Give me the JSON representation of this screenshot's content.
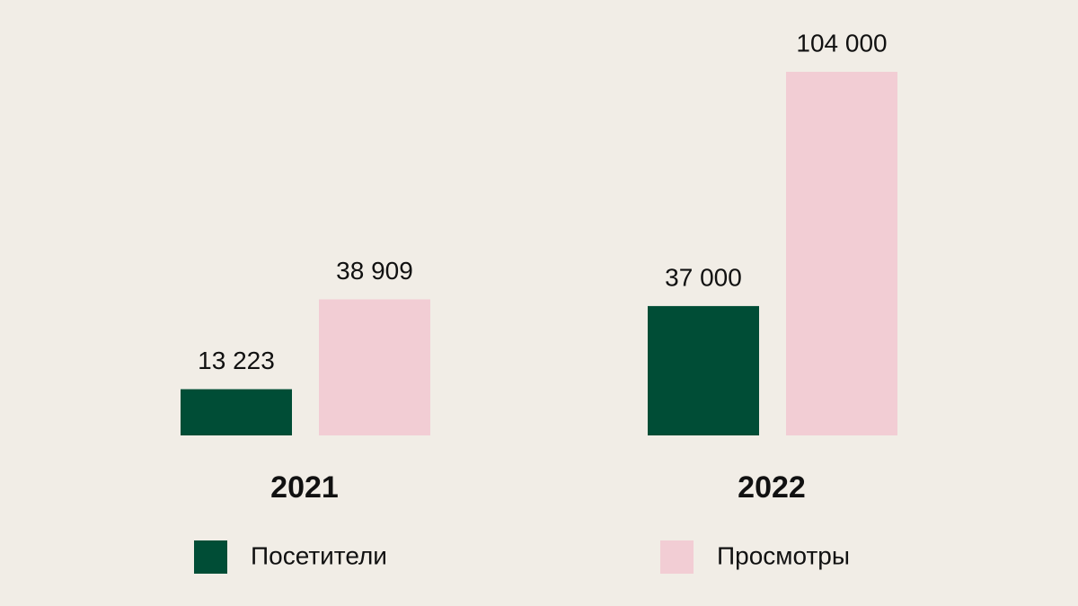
{
  "chart_data": {
    "type": "bar",
    "categories": [
      "2021",
      "2022"
    ],
    "series": [
      {
        "name": "Посетители",
        "color": "#004d36",
        "values": [
          13223,
          37000
        ],
        "value_labels": [
          "13 223",
          "37 000"
        ]
      },
      {
        "name": "Просмотры",
        "color": "#f2cdd4",
        "values": [
          38909,
          104000
        ],
        "value_labels": [
          "38 909",
          "104 000"
        ]
      }
    ]
  }
}
